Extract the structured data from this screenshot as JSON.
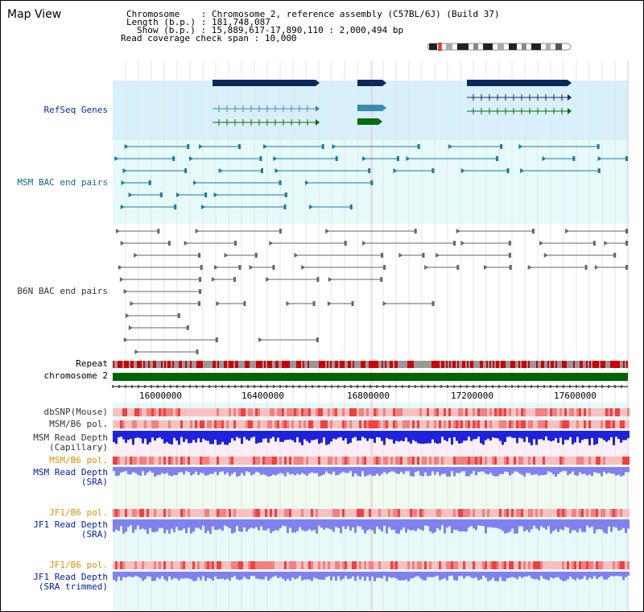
{
  "title": "Map View",
  "info": {
    "chromosome_label": "Chromosome",
    "chromosome_value": ": Chromosome 2, reference assembly (C57BL/6J) (Build 37)",
    "length_label": "Length (b.p.)",
    "length_value": ": 181,748,087",
    "show_label": "Show (b.p.)",
    "show_value": ": 15,889,617-17,890,110 : 2,000,494 bp",
    "coverage_label": "Read coverage check span",
    "coverage_value": ": 10,000"
  },
  "tracks": {
    "refseq": "RefSeq Genes",
    "msm_bac": "MSM BAC end pairs",
    "b6n_bac": "B6N BAC end pairs",
    "repeat": "Repeat",
    "chromosome": "chromosome 2",
    "dbsnp": "dbSNP(Mouse)",
    "msm_b6_pol": "MSM/B6 pol.",
    "msm_depth_cap_1": "MSM Read Depth",
    "msm_depth_cap_2": "(Capillary)",
    "msm_b6_pol_2": "MSM/B6 pol.",
    "msm_depth_sra_1": "MSM Read Depth",
    "msm_depth_sra_2": "(SRA)",
    "jf1_b6_pol": "JF1/B6 pol.",
    "jf1_depth_sra_1": "JF1 Read Depth",
    "jf1_depth_sra_2": "(SRA)",
    "jf1_b6_pol_2": "JF1/B6 pol.",
    "jf1_depth_trim_1": "JF1 Read Depth",
    "jf1_depth_trim_2": "(SRA trimmed)"
  },
  "axis": {
    "ticks": [
      "16000000",
      "16400000",
      "16800000",
      "17200000",
      "17600000"
    ]
  },
  "colors": {
    "refseq_bg": "#d8f0fa",
    "track_bg": "#e6fafa",
    "gene_dark": "#0a2a5c",
    "gene_teal": "#3a8ab0",
    "gene_green": "#0a6a10",
    "chrom_green": "#006400",
    "repeat_red": "#d00000",
    "depth_blue": "#2020e0",
    "depth_light": "#8080f0"
  }
}
